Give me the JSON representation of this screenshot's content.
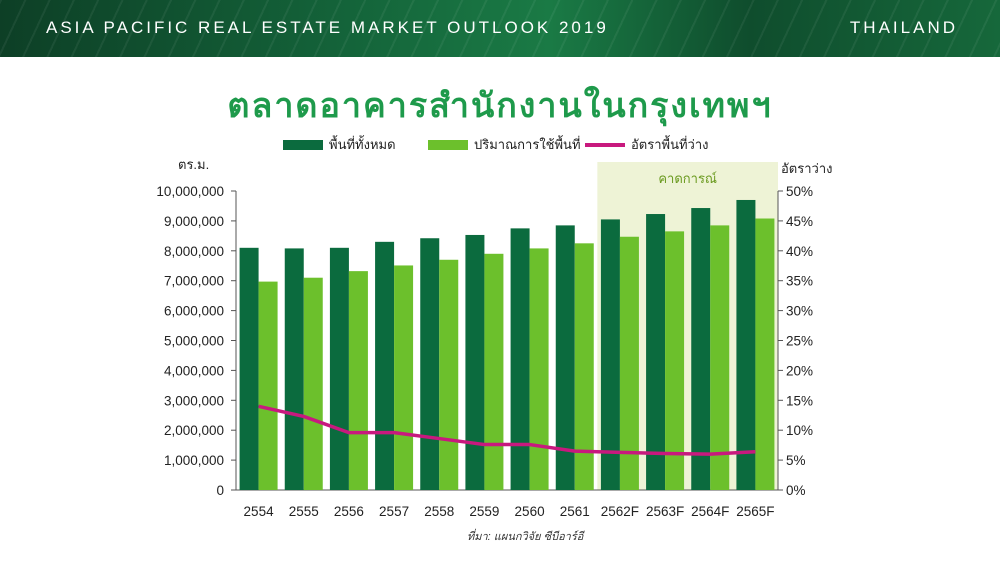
{
  "header": {
    "report_title": "ASIA PACIFIC REAL ESTATE MARKET OUTLOOK 2019",
    "country": "THAILAND"
  },
  "colors": {
    "banner": "#14643a",
    "title": "#1e9a4b",
    "total_supply": "#0b6b3e",
    "occupied": "#6cc02c",
    "vacancy": "#c8197e",
    "forecast_bg": "#eef3d6"
  },
  "chart_data": {
    "type": "bar",
    "title": "ตลาดอาคารสำนักงานในกรุงเทพฯ",
    "y_left_label": "ตร.ม.",
    "y_right_label": "อัตราว่าง",
    "forecast_label": "คาดการณ์",
    "source": "ที่มา: แผนกวิจัย ซีบีอาร์อี",
    "categories": [
      "2554",
      "2555",
      "2556",
      "2557",
      "2558",
      "2559",
      "2560",
      "2561",
      "2562F",
      "2563F",
      "2564F",
      "2565F"
    ],
    "forecast_categories": [
      "2562F",
      "2563F",
      "2564F",
      "2565F"
    ],
    "ylim_left": [
      0,
      10000000
    ],
    "ylim_right": [
      0,
      50
    ],
    "y_left_ticks": [
      "0",
      "1,000,000",
      "2,000,000",
      "3,000,000",
      "4,000,000",
      "5,000,000",
      "6,000,000",
      "7,000,000",
      "8,000,000",
      "9,000,000",
      "10,000,000"
    ],
    "y_right_ticks": [
      "0%",
      "5%",
      "10%",
      "15%",
      "20%",
      "25%",
      "30%",
      "35%",
      "40%",
      "45%",
      "50%"
    ],
    "series": [
      {
        "name": "พื้นที่ทั้งหมด",
        "type": "bar",
        "axis": "left",
        "values": [
          8100000,
          8080000,
          8100000,
          8300000,
          8420000,
          8530000,
          8750000,
          8850000,
          9050000,
          9230000,
          9430000,
          9700000
        ]
      },
      {
        "name": "ปริมาณการใช้พื้นที่",
        "type": "bar",
        "axis": "left",
        "values": [
          6970000,
          7100000,
          7320000,
          7510000,
          7700000,
          7900000,
          8080000,
          8250000,
          8470000,
          8650000,
          8850000,
          9080000
        ]
      },
      {
        "name": "อัตราพื้นที่ว่าง",
        "type": "line",
        "axis": "right",
        "values": [
          14.0,
          12.3,
          9.6,
          9.6,
          8.6,
          7.6,
          7.6,
          6.5,
          6.3,
          6.1,
          6.0,
          6.4
        ]
      }
    ],
    "grid": false,
    "legend": "top"
  }
}
